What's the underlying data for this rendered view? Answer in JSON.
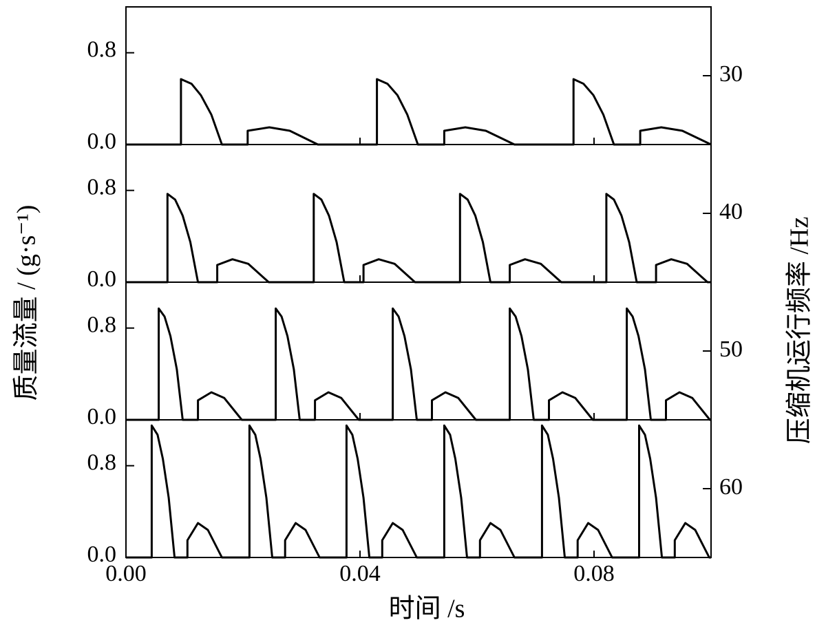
{
  "chart_data": {
    "type": "line",
    "xlabel": "时间 /s",
    "ylabel": "质量流量 / (g·s⁻¹)",
    "y2label": "压缩机运行频率 /Hz",
    "color": "#000000",
    "xlim": [
      0,
      0.1
    ],
    "xticks": [
      {
        "value": 0,
        "label": "0.00"
      },
      0.04,
      0.08
    ],
    "ylim": [
      0,
      1.2
    ],
    "yticks": [
      {
        "value": 0,
        "label": "0.0"
      },
      0.8
    ],
    "panels": [
      {
        "y2lim": [
          25,
          35
        ],
        "y2ticks": [
          30
        ],
        "x": [
          0,
          0.0094,
          0.0094,
          0.0112,
          0.0128,
          0.0146,
          0.0164,
          0.0208,
          0.0208,
          0.0245,
          0.028,
          0.0328,
          0.0429,
          0.0429,
          0.0447,
          0.0464,
          0.0481,
          0.0499,
          0.0544,
          0.0544,
          0.058,
          0.0615,
          0.0664,
          0.0765,
          0.0765,
          0.0782,
          0.0799,
          0.0816,
          0.0834,
          0.0879,
          0.0879,
          0.0915,
          0.0951,
          0.1
        ],
        "values": [
          0,
          0,
          0.57,
          0.53,
          0.43,
          0.26,
          0,
          0,
          0.12,
          0.15,
          0.12,
          0,
          0,
          0.57,
          0.53,
          0.43,
          0.26,
          0,
          0,
          0.12,
          0.15,
          0.12,
          0,
          0,
          0.57,
          0.53,
          0.43,
          0.26,
          0,
          0,
          0.12,
          0.15,
          0.12,
          0
        ]
      },
      {
        "y2lim": [
          35,
          45
        ],
        "y2ticks": [
          40
        ],
        "x": [
          0,
          0.0071,
          0.0071,
          0.0084,
          0.0097,
          0.011,
          0.0123,
          0.0156,
          0.0156,
          0.0182,
          0.0209,
          0.0244,
          0.0321,
          0.0321,
          0.0334,
          0.0347,
          0.036,
          0.0373,
          0.0406,
          0.0406,
          0.0432,
          0.0459,
          0.0494,
          0.0571,
          0.0571,
          0.0584,
          0.0597,
          0.061,
          0.0623,
          0.0656,
          0.0656,
          0.0682,
          0.0709,
          0.0744,
          0.0821,
          0.0821,
          0.0834,
          0.0847,
          0.086,
          0.0873,
          0.0906,
          0.0906,
          0.0932,
          0.0959,
          0.0994,
          0.1
        ],
        "values": [
          0,
          0,
          0.77,
          0.72,
          0.58,
          0.35,
          0,
          0,
          0.15,
          0.2,
          0.16,
          0,
          0,
          0.77,
          0.72,
          0.58,
          0.35,
          0,
          0,
          0.15,
          0.2,
          0.16,
          0,
          0,
          0.77,
          0.72,
          0.58,
          0.35,
          0,
          0,
          0.15,
          0.2,
          0.16,
          0,
          0,
          0.77,
          0.72,
          0.58,
          0.35,
          0,
          0,
          0.15,
          0.2,
          0.16,
          0,
          0
        ]
      },
      {
        "y2lim": [
          45,
          55
        ],
        "y2ticks": [
          50
        ],
        "x": [
          0,
          0.0056,
          0.0056,
          0.0066,
          0.0076,
          0.0087,
          0.0097,
          0.0123,
          0.0123,
          0.0146,
          0.0168,
          0.0198,
          0.0256,
          0.0256,
          0.0266,
          0.0276,
          0.0287,
          0.0297,
          0.0323,
          0.0323,
          0.0346,
          0.0368,
          0.0398,
          0.0456,
          0.0456,
          0.0466,
          0.0476,
          0.0487,
          0.0497,
          0.0523,
          0.0523,
          0.0546,
          0.0568,
          0.0598,
          0.0656,
          0.0656,
          0.0666,
          0.0676,
          0.0687,
          0.0697,
          0.0723,
          0.0723,
          0.0746,
          0.0768,
          0.0798,
          0.0856,
          0.0856,
          0.0866,
          0.0876,
          0.0887,
          0.0897,
          0.0923,
          0.0923,
          0.0946,
          0.0968,
          0.0998,
          0.1
        ],
        "values": [
          0,
          0,
          0.97,
          0.9,
          0.73,
          0.44,
          0,
          0,
          0.17,
          0.24,
          0.19,
          0,
          0,
          0.97,
          0.9,
          0.73,
          0.44,
          0,
          0,
          0.17,
          0.24,
          0.19,
          0,
          0,
          0.97,
          0.9,
          0.73,
          0.44,
          0,
          0,
          0.17,
          0.24,
          0.19,
          0,
          0,
          0.97,
          0.9,
          0.73,
          0.44,
          0,
          0,
          0.17,
          0.24,
          0.19,
          0,
          0,
          0.97,
          0.9,
          0.73,
          0.44,
          0,
          0,
          0.17,
          0.24,
          0.19,
          0,
          0
        ]
      },
      {
        "y2lim": [
          55,
          65
        ],
        "y2ticks": [
          60
        ],
        "x": [
          0,
          0.0044,
          0.0044,
          0.0054,
          0.0063,
          0.0073,
          0.0083,
          0.0105,
          0.0105,
          0.0123,
          0.014,
          0.0164,
          0.0211,
          0.0211,
          0.0221,
          0.023,
          0.024,
          0.025,
          0.0272,
          0.0272,
          0.029,
          0.0307,
          0.0331,
          0.0377,
          0.0377,
          0.0387,
          0.0396,
          0.0406,
          0.0416,
          0.0438,
          0.0438,
          0.0456,
          0.0473,
          0.0497,
          0.0544,
          0.0544,
          0.0554,
          0.0563,
          0.0573,
          0.0583,
          0.0605,
          0.0605,
          0.0623,
          0.064,
          0.0664,
          0.0711,
          0.0711,
          0.0721,
          0.073,
          0.074,
          0.075,
          0.0772,
          0.0772,
          0.079,
          0.0807,
          0.0831,
          0.0877,
          0.0877,
          0.0887,
          0.0896,
          0.0906,
          0.0916,
          0.0938,
          0.0938,
          0.0956,
          0.0973,
          0.0997,
          0.1
        ],
        "values": [
          0,
          0,
          1.15,
          1.07,
          0.86,
          0.52,
          0,
          0,
          0.15,
          0.3,
          0.24,
          0,
          0,
          1.15,
          1.07,
          0.86,
          0.52,
          0,
          0,
          0.15,
          0.3,
          0.24,
          0,
          0,
          1.15,
          1.07,
          0.86,
          0.52,
          0,
          0,
          0.15,
          0.3,
          0.24,
          0,
          0,
          1.15,
          1.07,
          0.86,
          0.52,
          0,
          0,
          0.15,
          0.3,
          0.24,
          0,
          0,
          1.15,
          1.07,
          0.86,
          0.52,
          0,
          0,
          0.15,
          0.3,
          0.24,
          0,
          0,
          1.15,
          1.07,
          0.86,
          0.52,
          0,
          0,
          0.15,
          0.3,
          0.24,
          0,
          0
        ]
      }
    ]
  }
}
